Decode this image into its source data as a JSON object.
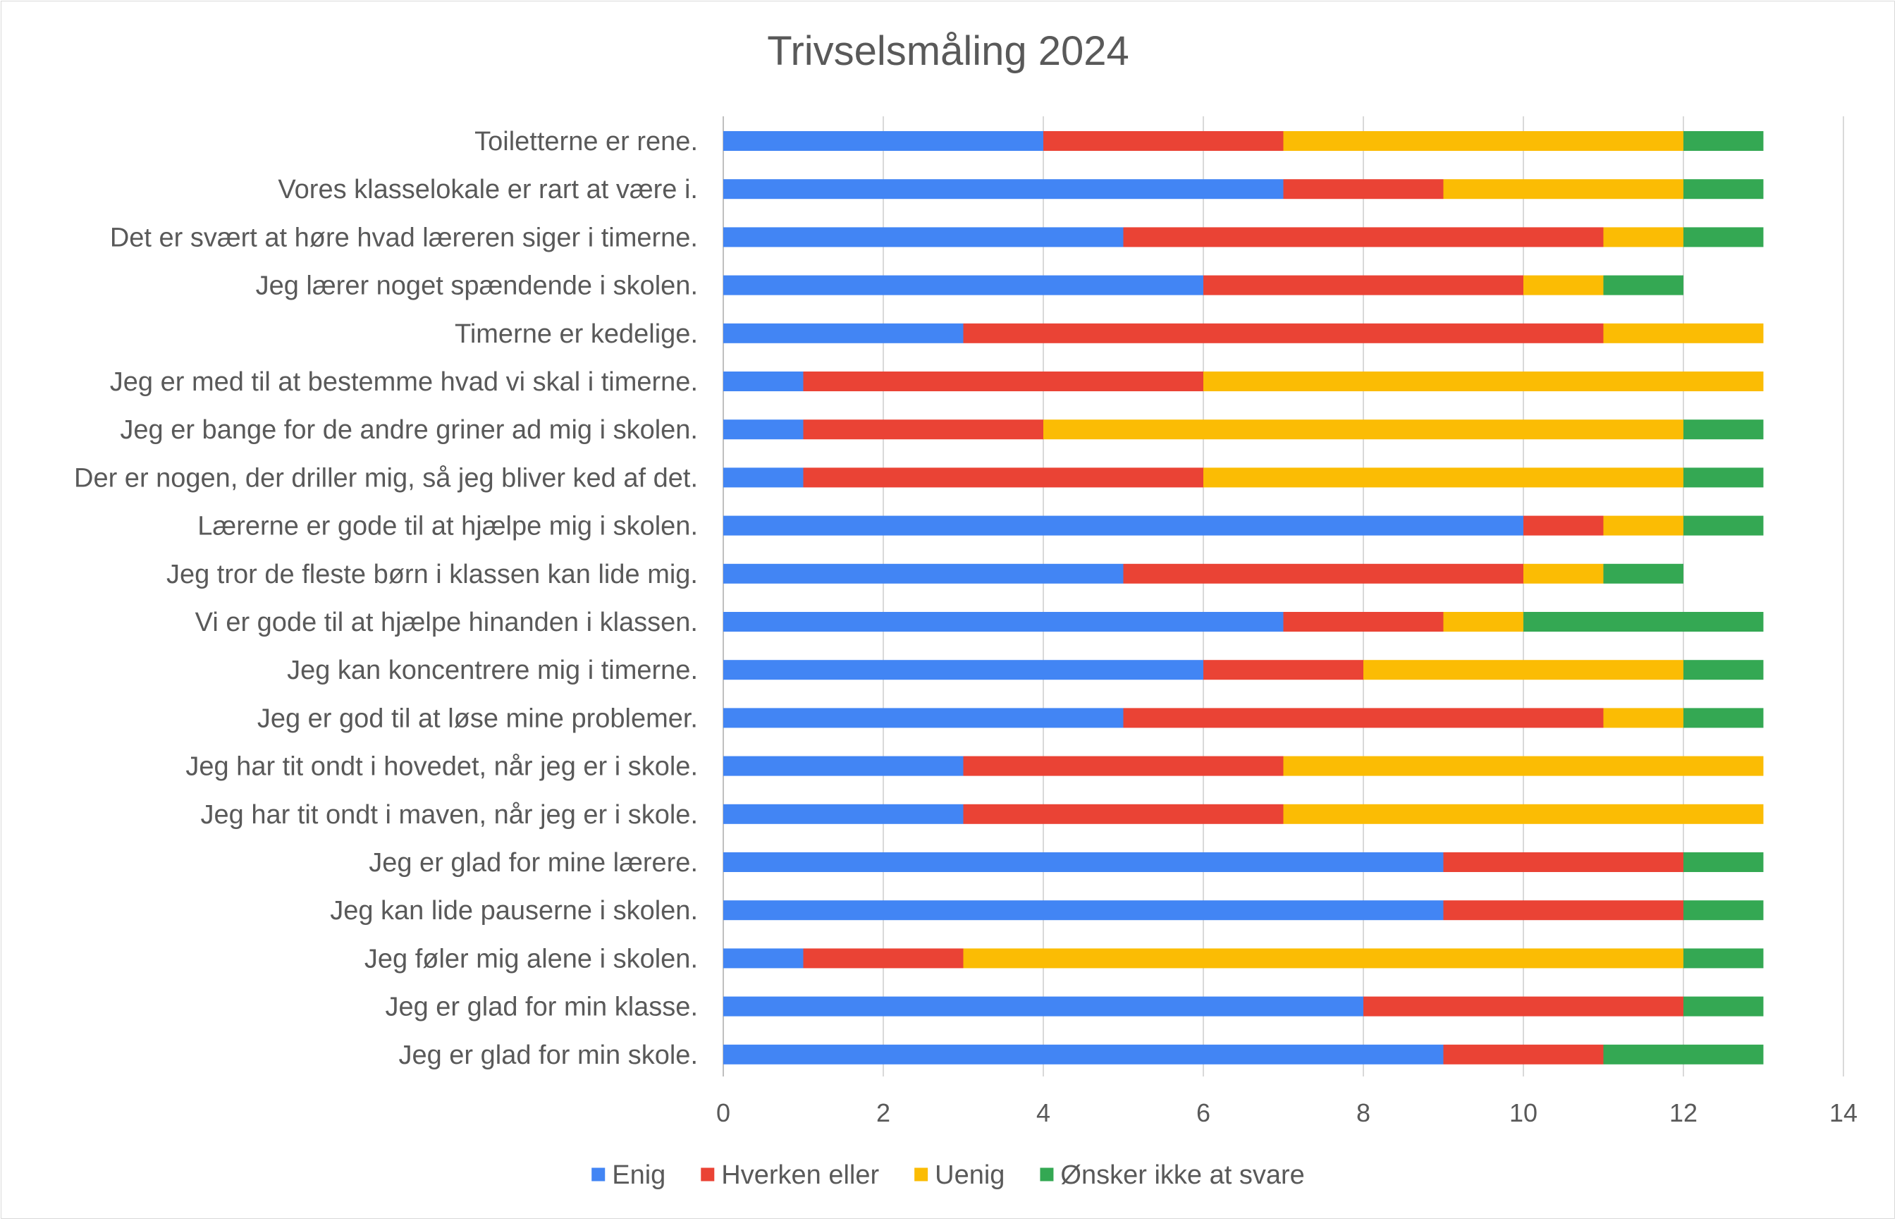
{
  "chart_data": {
    "type": "bar",
    "orientation": "horizontal",
    "stacked": true,
    "title": "Trivselsmåling 2024",
    "xlabel": "",
    "ylabel": "",
    "xlim": [
      0,
      14
    ],
    "xticks": [
      0,
      2,
      4,
      6,
      8,
      10,
      12,
      14
    ],
    "grid": true,
    "legend_position": "bottom",
    "categories": [
      "Toiletterne er rene.",
      "Vores klasselokale er rart at være i.",
      "Det er svært at høre hvad læreren siger i timerne.",
      "Jeg lærer noget spændende i skolen.",
      "Timerne er kedelige.",
      "Jeg er med til at bestemme hvad vi skal i timerne.",
      "Jeg er bange for de andre griner ad mig i skolen.",
      "Der er nogen, der driller mig, så jeg bliver ked af det.",
      "Lærerne er gode til at hjælpe mig i skolen.",
      "Jeg tror de fleste børn i klassen kan lide mig.",
      "Vi er gode til at hjælpe hinanden i klassen.",
      "Jeg kan koncentrere mig i timerne.",
      "Jeg er god til at løse mine problemer.",
      "Jeg har tit ondt i hovedet, når jeg er i skole.",
      "Jeg har tit ondt i maven, når jeg er i skole.",
      "Jeg er glad for mine lærere.",
      "Jeg kan lide pauserne i skolen.",
      "Jeg føler mig alene i skolen.",
      "Jeg er glad for min klasse.",
      "Jeg er glad for min skole."
    ],
    "series": [
      {
        "name": "Enig",
        "color": "#4285F4",
        "values": [
          4,
          7,
          5,
          6,
          3,
          1,
          1,
          1,
          10,
          5,
          7,
          6,
          5,
          3,
          3,
          9,
          9,
          1,
          8,
          9
        ]
      },
      {
        "name": "Hverken eller",
        "color": "#EA4335",
        "values": [
          3,
          2,
          6,
          4,
          8,
          5,
          3,
          5,
          1,
          5,
          2,
          2,
          6,
          4,
          4,
          3,
          3,
          2,
          4,
          2
        ]
      },
      {
        "name": "Uenig",
        "color": "#FBBC04",
        "values": [
          5,
          3,
          1,
          1,
          2,
          7,
          8,
          6,
          1,
          1,
          1,
          4,
          1,
          6,
          6,
          0,
          0,
          9,
          0,
          0
        ]
      },
      {
        "name": "Ønsker ikke at svare",
        "color": "#34A853",
        "values": [
          1,
          1,
          1,
          1,
          0,
          0,
          1,
          1,
          1,
          1,
          3,
          1,
          1,
          0,
          0,
          1,
          1,
          1,
          1,
          2
        ]
      }
    ]
  }
}
